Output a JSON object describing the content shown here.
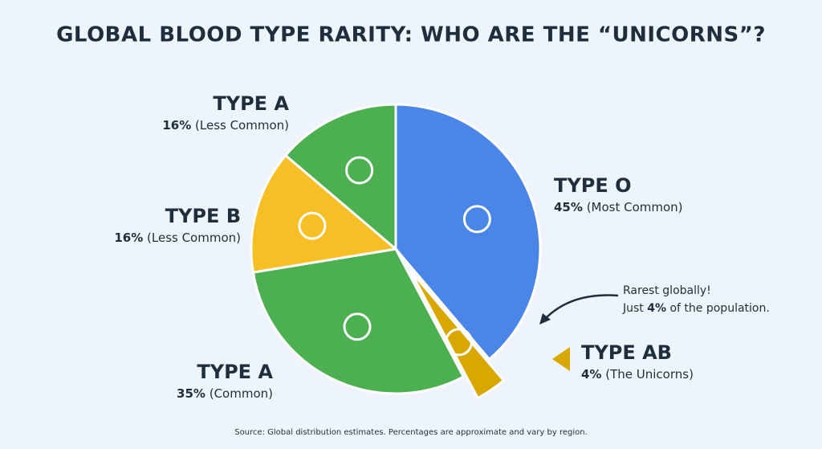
{
  "chart_data": {
    "type": "pie",
    "title": "GLOBAL BLOOD TYPE RARITY: WHO ARE THE “UNICORNS”?",
    "categories": [
      "TYPE O",
      "TYPE AB",
      "TYPE A",
      "TYPE B",
      "TYPE A"
    ],
    "values": [
      45,
      4,
      35,
      16,
      16
    ],
    "value_labels": [
      "45%",
      "4%",
      "35%",
      "16%",
      "16%"
    ],
    "descriptions": [
      "(Most Common)",
      "(The Unicorns)",
      "(Common)",
      "(Less Common)",
      "(Less Common)"
    ],
    "colors": [
      "#4a86e8",
      "#d9a800",
      "#4caf50",
      "#f6bf26",
      "#4caf50"
    ],
    "exploded": [
      false,
      true,
      false,
      false,
      false
    ],
    "annotation": {
      "line1": "Rarest globally!",
      "line2_start": "Just ",
      "line2_bold": "4%",
      "line2_end": " of the population."
    },
    "source": "Source: Global distribution estimates. Percentages are approximate and vary by region."
  }
}
